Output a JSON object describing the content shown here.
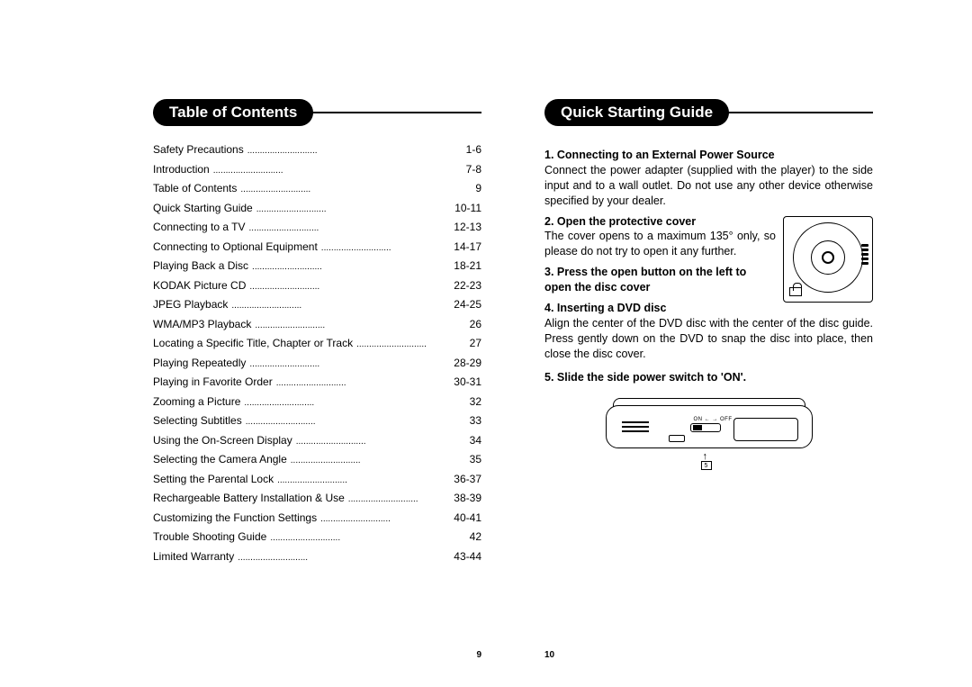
{
  "colors": {
    "text": "#000000",
    "bg": "#ffffff",
    "pill_bg": "#000000",
    "pill_fg": "#ffffff"
  },
  "typography": {
    "body_fontsize_pt": 9,
    "header_fontsize_pt": 13,
    "header_weight": "bold",
    "family": "Arial"
  },
  "left": {
    "header": "Table of Contents",
    "page_number": "9",
    "toc": [
      {
        "label": "Safety Precautions",
        "pages": "1-6"
      },
      {
        "label": "Introduction",
        "pages": "7-8"
      },
      {
        "label": "Table of Contents",
        "pages": "9"
      },
      {
        "label": "Quick Starting Guide",
        "pages": "10-11"
      },
      {
        "label": "Connecting to a TV",
        "pages": "12-13"
      },
      {
        "label": "Connecting to Optional Equipment",
        "pages": "14-17"
      },
      {
        "label": "Playing Back a Disc",
        "pages": "18-21"
      },
      {
        "label": "KODAK Picture CD",
        "pages": "22-23"
      },
      {
        "label": "JPEG Playback",
        "pages": "24-25"
      },
      {
        "label": "WMA/MP3 Playback",
        "pages": "26"
      },
      {
        "label": "Locating a Specific Title, Chapter or Track",
        "pages": "27"
      },
      {
        "label": "Playing Repeatedly",
        "pages": "28-29"
      },
      {
        "label": "Playing in Favorite Order",
        "pages": "30-31"
      },
      {
        "label": "Zooming a Picture",
        "pages": "32"
      },
      {
        "label": "Selecting Subtitles",
        "pages": "33"
      },
      {
        "label": "Using the On-Screen Display",
        "pages": "34"
      },
      {
        "label": "Selecting the Camera Angle",
        "pages": "35"
      },
      {
        "label": "Setting the Parental Lock",
        "pages": "36-37"
      },
      {
        "label": "Rechargeable Battery Installation & Use",
        "pages": "38-39"
      },
      {
        "label": "Customizing the Function Settings",
        "pages": "40-41"
      },
      {
        "label": "Trouble Shooting Guide",
        "pages": "42"
      },
      {
        "label": "Limited Warranty",
        "pages": "43-44"
      }
    ]
  },
  "right": {
    "header": "Quick Starting Guide",
    "page_number": "10",
    "steps": {
      "s1_title": "1. Connecting to an External Power Source",
      "s1_body": "Connect the power adapter (supplied with the player) to the side input and to a wall outlet. Do not use any other device otherwise specified by your dealer.",
      "s2_title": "2. Open the protective cover",
      "s2_body": "The cover opens to a maximum 135° only, so please do not try to open it any further.",
      "s3_title": "3. Press the open button on the left to open the disc cover",
      "s4_title": "4. Inserting a DVD disc",
      "s4_body": "Align the center of the DVD disc with the center of the disc guide. Press gently down on the DVD to snap the disc into place, then close the disc cover.",
      "s5_title": "5. Slide the side power switch to 'ON'."
    },
    "fig2_switch_label": "ON ← → OFF",
    "fig2_arrow_num": "5"
  }
}
